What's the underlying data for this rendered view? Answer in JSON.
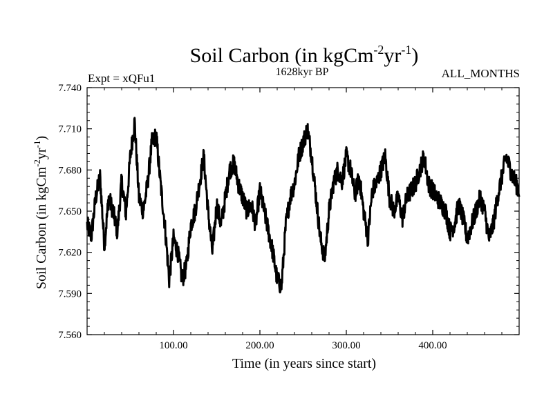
{
  "chart_data": {
    "type": "line",
    "title": "Soil Carbon (in kgCm",
    "title_unit_sup1": "-2",
    "title_unit_mid": "yr",
    "title_unit_sup2": "-1",
    "title_close": ")",
    "subtitle": "1628kyr BP",
    "expt_label": "Expt = xQFu1",
    "season_label": "ALL_MONTHS",
    "xlabel": "Time (in years since start)",
    "ylabel": "Soil Carbon (in kgCm",
    "ylabel_sup1": "-2",
    "ylabel_mid": "yr",
    "ylabel_sup2": "-1",
    "ylabel_close": ")",
    "xlim": [
      0,
      500
    ],
    "ylim": [
      7.56,
      7.74
    ],
    "x_ticks": [
      100,
      200,
      300,
      400
    ],
    "x_tick_labels": [
      "100.00",
      "200.00",
      "300.00",
      "400.00"
    ],
    "y_ticks": [
      7.56,
      7.59,
      7.62,
      7.65,
      7.68,
      7.71,
      7.74
    ],
    "y_tick_labels": [
      "7.560",
      "7.590",
      "7.620",
      "7.650",
      "7.680",
      "7.710",
      "7.740"
    ],
    "series": [
      {
        "name": "Soil Carbon",
        "color": "#000000",
        "x": [
          0,
          5,
          10,
          15,
          20,
          25,
          30,
          35,
          40,
          45,
          50,
          55,
          60,
          65,
          70,
          75,
          80,
          85,
          90,
          95,
          100,
          105,
          110,
          115,
          120,
          125,
          130,
          135,
          140,
          145,
          150,
          155,
          160,
          165,
          170,
          175,
          180,
          185,
          190,
          195,
          200,
          205,
          210,
          215,
          220,
          225,
          230,
          235,
          240,
          245,
          250,
          255,
          260,
          265,
          270,
          275,
          280,
          285,
          290,
          295,
          300,
          305,
          310,
          315,
          320,
          325,
          330,
          335,
          340,
          345,
          350,
          355,
          360,
          365,
          370,
          375,
          380,
          385,
          390,
          395,
          400,
          405,
          410,
          415,
          420,
          425,
          430,
          435,
          440,
          445,
          450,
          455,
          460,
          465,
          470,
          475,
          480,
          485,
          490,
          495,
          500
        ],
        "y": [
          7.64,
          7.632,
          7.66,
          7.675,
          7.625,
          7.66,
          7.65,
          7.635,
          7.672,
          7.648,
          7.69,
          7.715,
          7.66,
          7.65,
          7.67,
          7.7,
          7.705,
          7.67,
          7.64,
          7.6,
          7.63,
          7.62,
          7.6,
          7.61,
          7.64,
          7.65,
          7.67,
          7.69,
          7.65,
          7.62,
          7.655,
          7.64,
          7.66,
          7.68,
          7.685,
          7.67,
          7.66,
          7.65,
          7.655,
          7.64,
          7.665,
          7.65,
          7.635,
          7.62,
          7.6,
          7.595,
          7.64,
          7.66,
          7.67,
          7.69,
          7.7,
          7.71,
          7.69,
          7.66,
          7.63,
          7.615,
          7.65,
          7.67,
          7.68,
          7.672,
          7.69,
          7.68,
          7.662,
          7.675,
          7.65,
          7.63,
          7.665,
          7.67,
          7.68,
          7.69,
          7.66,
          7.65,
          7.66,
          7.645,
          7.66,
          7.665,
          7.67,
          7.68,
          7.69,
          7.67,
          7.665,
          7.66,
          7.655,
          7.65,
          7.635,
          7.64,
          7.655,
          7.645,
          7.63,
          7.64,
          7.65,
          7.66,
          7.65,
          7.63,
          7.64,
          7.66,
          7.675,
          7.69,
          7.68,
          7.672,
          7.665
        ]
      }
    ]
  }
}
